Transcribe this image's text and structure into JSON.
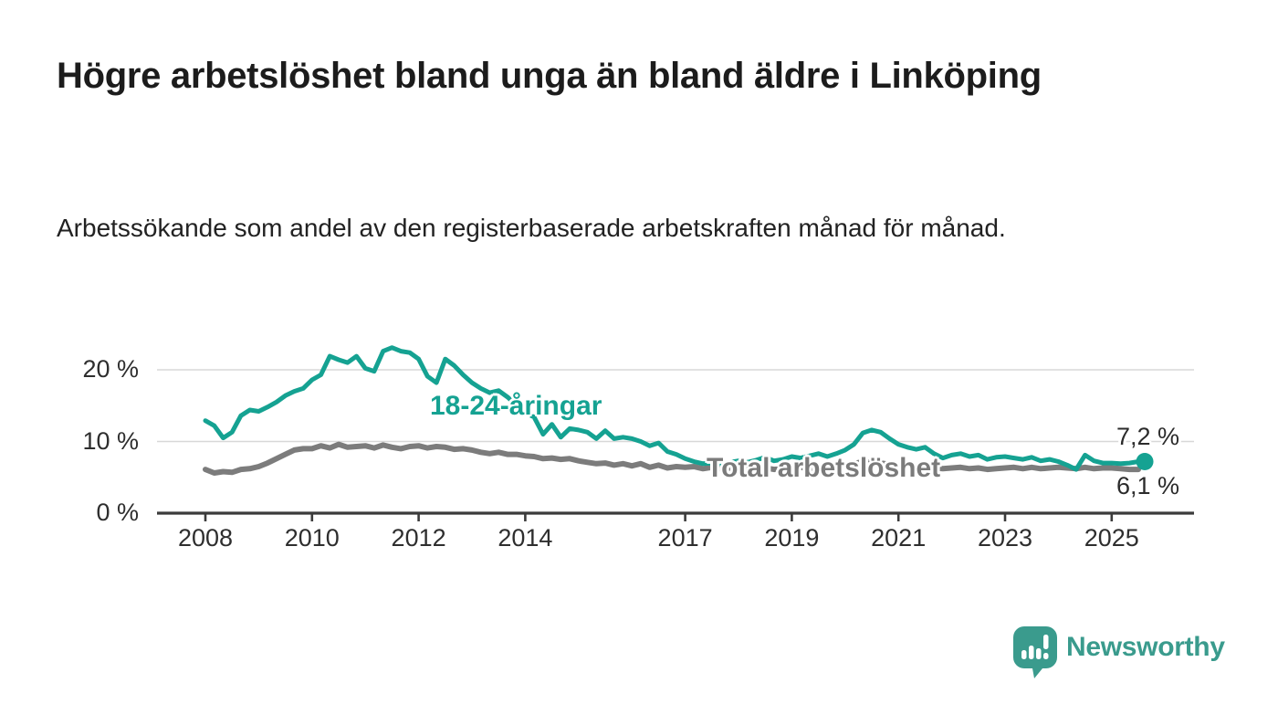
{
  "title": "Högre arbetslöshet bland unga än bland äldre i Linköping",
  "subtitle": "Arbetssökande som andel av den registerbaserade arbetskraften månad för månad.",
  "branding": {
    "wordmark": "Newsworthy",
    "logo_icon": "speech-bubble-bar-chart"
  },
  "colors": {
    "youth_line": "#15a292",
    "total_line": "#7c7c7c",
    "total_label": "#7b7b7b",
    "axis": "#3b3b3b",
    "grid": "#d8d8d8",
    "text": "#1c1c1c",
    "tick_text": "#2e2e2e",
    "end_label_text": "#2b2b2b",
    "logo": "#3a9b8d"
  },
  "chart_data": {
    "type": "line",
    "title": "Högre arbetslöshet bland unga än bland äldre i Linköping",
    "xlabel": "",
    "ylabel": "",
    "grid": "horizontal",
    "x_unit": "year (monthly observations)",
    "y_unit": "percent",
    "xlim": [
      2007.1,
      2026.5
    ],
    "ylim": [
      0,
      24
    ],
    "x_ticks": {
      "labels": [
        "2008",
        "2010",
        "2012",
        "2014",
        "2017",
        "2019",
        "2021",
        "2023",
        "2025"
      ],
      "years": [
        2008,
        2010,
        2012,
        2014,
        2017,
        2019,
        2021,
        2023,
        2025
      ]
    },
    "y_ticks": {
      "labels": [
        "0 %",
        "10 %",
        "20 %"
      ],
      "values": [
        0,
        10,
        20
      ]
    },
    "x_start": 2008.0,
    "x_step_years": 0.16667,
    "series": [
      {
        "name": "18-24-åringar",
        "color": "#15a292",
        "end_label": "7,2 %",
        "end_value": 7.2,
        "end_dot": true,
        "values": [
          12.9,
          12.2,
          10.5,
          11.3,
          13.6,
          14.4,
          14.2,
          14.8,
          15.5,
          16.4,
          17.0,
          17.4,
          18.6,
          19.3,
          21.9,
          21.4,
          21.0,
          21.9,
          20.2,
          19.8,
          22.6,
          23.1,
          22.6,
          22.4,
          21.5,
          19.1,
          18.2,
          21.5,
          20.6,
          19.3,
          18.2,
          17.4,
          16.8,
          17.1,
          16.2,
          15.1,
          14.0,
          13.4,
          11.0,
          12.4,
          10.6,
          11.8,
          11.6,
          11.3,
          10.4,
          11.5,
          10.4,
          10.6,
          10.4,
          10.0,
          9.4,
          9.8,
          8.6,
          8.2,
          7.6,
          7.2,
          6.9,
          7.0,
          6.9,
          7.1,
          7.3,
          7.1,
          7.4,
          7.8,
          7.3,
          7.5,
          7.9,
          7.7,
          8.0,
          8.3,
          7.9,
          8.3,
          8.8,
          9.6,
          11.2,
          11.6,
          11.3,
          10.4,
          9.6,
          9.2,
          8.9,
          9.2,
          8.3,
          7.7,
          8.1,
          8.3,
          7.9,
          8.1,
          7.5,
          7.8,
          7.9,
          7.7,
          7.5,
          7.8,
          7.3,
          7.5,
          7.2,
          6.7,
          6.1,
          8.1,
          7.3,
          7.0,
          7.0,
          6.9,
          7.0,
          7.2
        ]
      },
      {
        "name": "Total arbetslöshet",
        "color": "#7c7c7c",
        "end_label": "6,1 %",
        "end_value": 6.1,
        "end_dot": false,
        "values": [
          6.1,
          5.6,
          5.8,
          5.7,
          6.1,
          6.2,
          6.5,
          7.0,
          7.6,
          8.2,
          8.8,
          9.0,
          9.0,
          9.4,
          9.1,
          9.6,
          9.2,
          9.3,
          9.4,
          9.1,
          9.5,
          9.2,
          9.0,
          9.3,
          9.4,
          9.1,
          9.3,
          9.2,
          8.9,
          9.0,
          8.8,
          8.5,
          8.3,
          8.5,
          8.2,
          8.2,
          8.0,
          7.9,
          7.6,
          7.7,
          7.5,
          7.6,
          7.3,
          7.1,
          6.9,
          7.0,
          6.7,
          6.9,
          6.6,
          6.9,
          6.4,
          6.7,
          6.3,
          6.5,
          6.4,
          6.5,
          6.2,
          6.4,
          6.2,
          6.3,
          6.2,
          6.4,
          6.1,
          6.3,
          6.1,
          6.2,
          6.3,
          6.4,
          6.2,
          6.4,
          6.3,
          6.5,
          6.6,
          6.9,
          7.2,
          7.1,
          7.0,
          6.8,
          6.7,
          6.6,
          6.4,
          6.5,
          6.3,
          6.2,
          6.3,
          6.4,
          6.2,
          6.3,
          6.1,
          6.2,
          6.3,
          6.4,
          6.2,
          6.4,
          6.2,
          6.3,
          6.4,
          6.3,
          6.2,
          6.4,
          6.2,
          6.3,
          6.3,
          6.2,
          6.1,
          6.1
        ]
      }
    ]
  }
}
